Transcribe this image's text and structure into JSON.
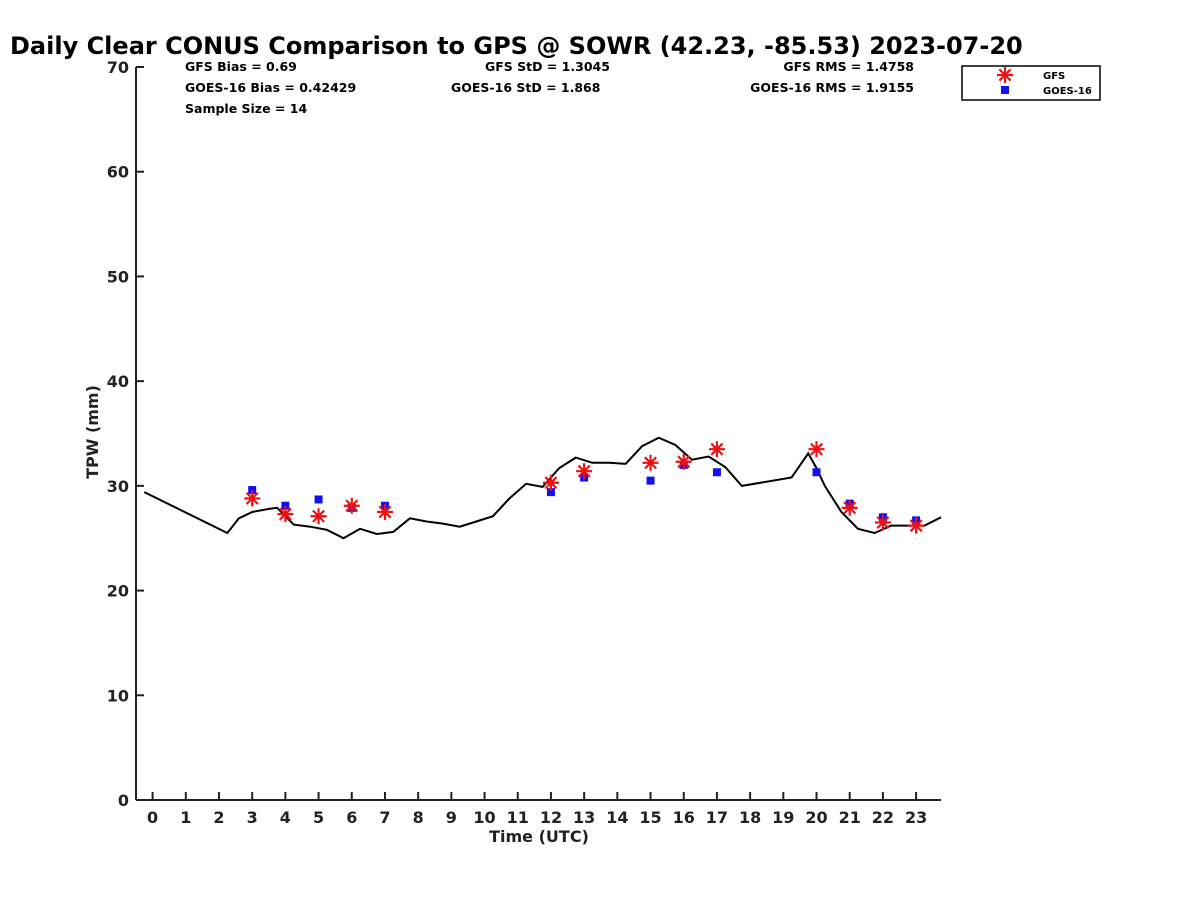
{
  "chart_data": {
    "type": "scatter",
    "title": "Daily Clear CONUS Comparison to GPS @ SOWR (42.23, -85.53) 2023-07-20",
    "xlabel": "Time (UTC)",
    "ylabel": "TPW (mm)",
    "xlim": [
      -0.5,
      23.75
    ],
    "ylim": [
      0,
      70
    ],
    "xticks": [
      "0",
      "1",
      "2",
      "3",
      "4",
      "5",
      "6",
      "7",
      "8",
      "9",
      "10",
      "11",
      "12",
      "13",
      "14",
      "15",
      "16",
      "17",
      "18",
      "19",
      "20",
      "21",
      "22",
      "23"
    ],
    "yticks": [
      "0",
      "10",
      "20",
      "30",
      "40",
      "50",
      "60",
      "70"
    ],
    "grid": false,
    "legend_position": "top-right",
    "stats": {
      "gfs_bias": "GFS Bias = 0.69",
      "goes_bias": "GOES-16 Bias = 0.42429",
      "sample_size": "Sample Size = 14",
      "gfs_std": "GFS StD = 1.3045",
      "goes_std": "GOES-16 StD = 1.868",
      "gfs_rms": "GFS RMS = 1.4758",
      "goes_rms": "GOES-16 RMS = 1.9155"
    },
    "series": [
      {
        "name": "GFS",
        "marker": "asterisk",
        "color": "#ee1111",
        "x": [
          3,
          4,
          5,
          6,
          7,
          12,
          13,
          15,
          16,
          17,
          20,
          21,
          22,
          23
        ],
        "y": [
          28.8,
          27.3,
          27.1,
          28.1,
          27.5,
          30.3,
          31.4,
          32.2,
          32.3,
          33.5,
          33.5,
          27.9,
          26.5,
          26.2
        ]
      },
      {
        "name": "GOES-16",
        "marker": "square",
        "color": "#1111ee",
        "x": [
          3,
          4,
          5,
          6,
          7,
          12,
          13,
          15,
          16,
          17,
          20,
          21,
          22,
          23
        ],
        "y": [
          29.6,
          28.1,
          28.7,
          27.9,
          28.1,
          29.4,
          30.8,
          30.5,
          32.0,
          31.3,
          31.3,
          28.3,
          27.0,
          26.7
        ]
      },
      {
        "marker": "line",
        "color": "#000000",
        "x": [
          -0.25,
          2.25,
          2.6,
          3.0,
          3.5,
          3.75,
          4.25,
          4.75,
          5.25,
          5.75,
          6.25,
          6.75,
          7.25,
          7.75,
          8.25,
          8.75,
          9.25,
          9.75,
          10.25,
          10.75,
          11.25,
          11.75,
          12.25,
          12.75,
          13.25,
          13.75,
          14.25,
          14.75,
          15.25,
          15.75,
          16.25,
          16.75,
          17.25,
          17.75,
          19.25,
          19.75,
          20.0,
          20.25,
          20.75,
          21.25,
          21.75,
          22.25,
          22.75,
          23.25,
          23.75
        ],
        "y": [
          29.4,
          25.5,
          26.9,
          27.5,
          27.8,
          27.9,
          26.3,
          26.1,
          25.8,
          25.0,
          25.9,
          25.4,
          25.6,
          26.9,
          26.6,
          26.4,
          26.1,
          26.6,
          27.1,
          28.8,
          30.2,
          29.9,
          31.7,
          32.7,
          32.2,
          32.2,
          32.1,
          33.8,
          34.6,
          33.9,
          32.5,
          32.8,
          31.8,
          30.0,
          30.8,
          33.1,
          31.7,
          30.0,
          27.5,
          25.9,
          25.5,
          26.2,
          26.2,
          26.2,
          27.0
        ]
      }
    ]
  }
}
